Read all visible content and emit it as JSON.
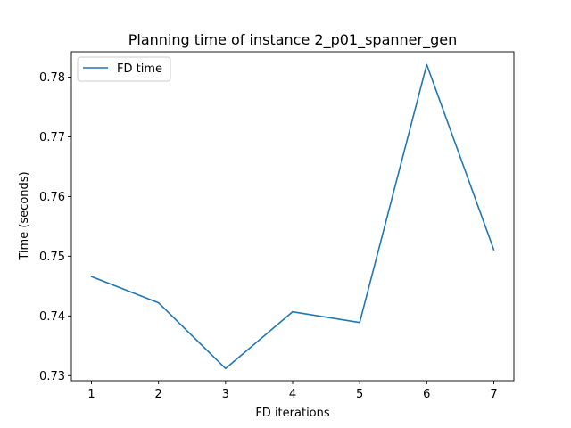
{
  "chart_data": {
    "type": "line",
    "title": "Planning time of instance 2_p01_spanner_gen",
    "xlabel": "FD iterations",
    "ylabel": "Time (seconds)",
    "x": [
      1,
      2,
      3,
      4,
      5,
      6,
      7
    ],
    "series": [
      {
        "name": "FD time",
        "color": "#1f77b4",
        "values": [
          0.7466,
          0.7422,
          0.7312,
          0.7407,
          0.7389,
          0.7821,
          0.7511
        ]
      }
    ],
    "xticks": [
      "1",
      "2",
      "3",
      "4",
      "5",
      "6",
      "7"
    ],
    "yticks": [
      "0.73",
      "0.74",
      "0.75",
      "0.76",
      "0.77",
      "0.78"
    ],
    "xlim": [
      0.7,
      7.3
    ],
    "ylim": [
      0.72915,
      0.78425
    ],
    "legend": "upper-left",
    "grid": false
  }
}
